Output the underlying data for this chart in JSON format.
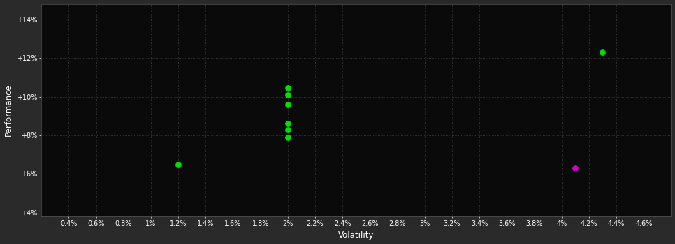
{
  "background_color": "#2a2a2a",
  "plot_bg_color": "#0a0a0a",
  "text_color": "#ffffff",
  "xlabel": "Volatility",
  "ylabel": "Performance",
  "xlim": [
    0.002,
    0.048
  ],
  "ylim": [
    0.038,
    0.148
  ],
  "xticks": [
    0.004,
    0.006,
    0.008,
    0.01,
    0.012,
    0.014,
    0.016,
    0.018,
    0.02,
    0.022,
    0.024,
    0.026,
    0.028,
    0.03,
    0.032,
    0.034,
    0.036,
    0.038,
    0.04,
    0.042,
    0.044,
    0.046
  ],
  "xtick_labels": [
    "0.4%",
    "0.6%",
    "0.8%",
    "1%",
    "1.2%",
    "1.4%",
    "1.6%",
    "1.8%",
    "2%",
    "2.2%",
    "2.4%",
    "2.6%",
    "2.8%",
    "3%",
    "3.2%",
    "3.4%",
    "3.6%",
    "3.8%",
    "4%",
    "4.2%",
    "4.4%",
    "4.6%"
  ],
  "yticks": [
    0.04,
    0.06,
    0.08,
    0.1,
    0.12,
    0.14
  ],
  "ytick_labels": [
    "+4%",
    "+6%",
    "+8%",
    "+10%",
    "+12%",
    "+14%"
  ],
  "green_points": [
    [
      0.012,
      0.065
    ],
    [
      0.02,
      0.1045
    ],
    [
      0.02,
      0.101
    ],
    [
      0.02,
      0.096
    ],
    [
      0.02,
      0.086
    ],
    [
      0.02,
      0.083
    ],
    [
      0.02,
      0.079
    ],
    [
      0.043,
      0.123
    ]
  ],
  "magenta_points": [
    [
      0.041,
      0.063
    ]
  ],
  "green_color": "#00dd00",
  "magenta_color": "#cc00cc",
  "marker_size": 28
}
